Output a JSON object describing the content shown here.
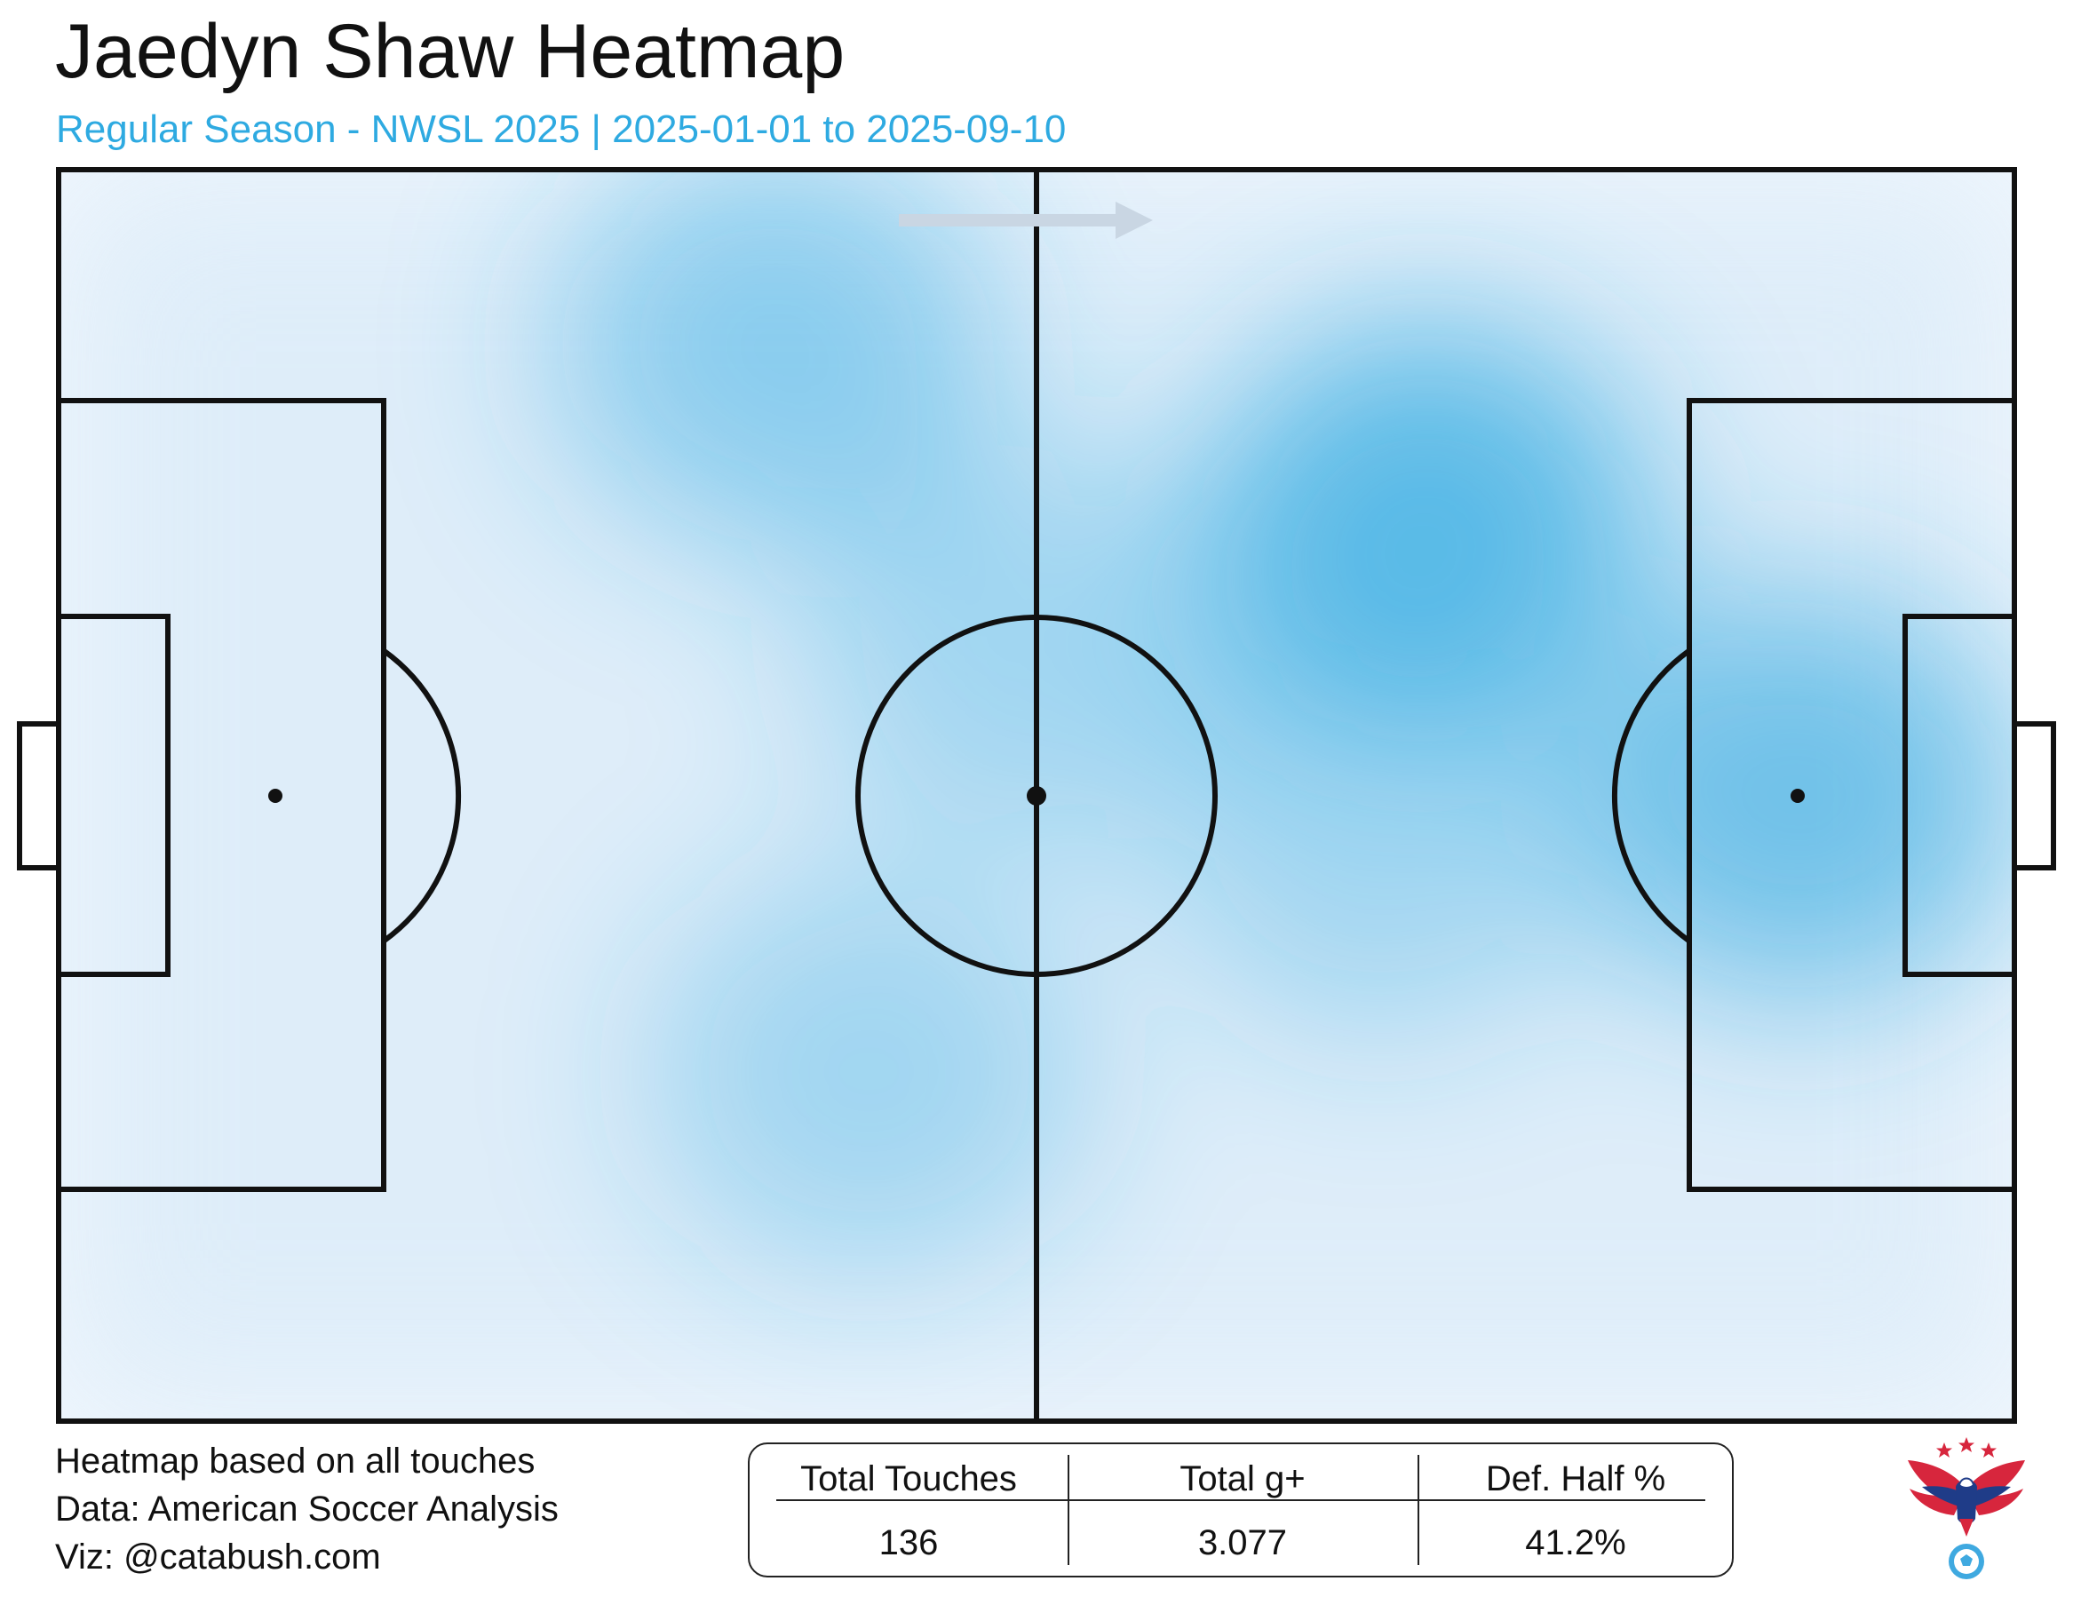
{
  "title": "Jaedyn Shaw Heatmap",
  "subtitle": "Regular Season - NWSL 2025 | 2025-01-01 to 2025-09-10",
  "colors": {
    "subtitle": "#2eaae1",
    "heat": "#2fa9e0",
    "pitch_lines": "#111111",
    "direction_arrow": "#c9d6e3"
  },
  "chart_data": {
    "type": "heatmap",
    "pitch": {
      "length": 105,
      "width": 68
    },
    "attack_direction": "right",
    "hotspots": [
      {
        "x": 73.5,
        "y": 19.5,
        "weight": 1.0
      },
      {
        "x": 93.5,
        "y": 34.0,
        "weight": 0.85
      },
      {
        "x": 38.5,
        "y": 9.5,
        "weight": 0.62
      },
      {
        "x": 43.5,
        "y": 49.0,
        "weight": 0.45
      },
      {
        "x": 71.0,
        "y": 36.0,
        "weight": 0.45
      },
      {
        "x": 52.0,
        "y": 26.0,
        "weight": 0.45
      }
    ]
  },
  "footer": {
    "line1": "Heatmap based on all touches",
    "line2": "Data: American Soccer Analysis",
    "line3": "Viz: @catabush.com"
  },
  "stats": [
    {
      "label": "Total Touches",
      "value": "136"
    },
    {
      "label": "Total g+",
      "value": "3.077"
    },
    {
      "label": "Def. Half %",
      "value": "41.2%"
    }
  ],
  "logo": {
    "icon": "eagle-soccer-ball-logo"
  }
}
